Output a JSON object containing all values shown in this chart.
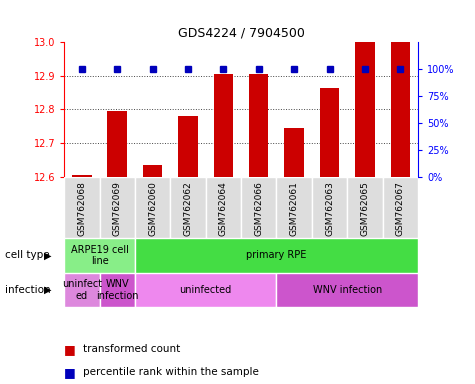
{
  "title": "GDS4224 / 7904500",
  "samples": [
    "GSM762068",
    "GSM762069",
    "GSM762060",
    "GSM762062",
    "GSM762064",
    "GSM762066",
    "GSM762061",
    "GSM762063",
    "GSM762065",
    "GSM762067"
  ],
  "transformed_counts": [
    12.605,
    12.795,
    12.635,
    12.78,
    12.905,
    12.905,
    12.745,
    12.865,
    13.0,
    13.0
  ],
  "percentile_ranks": [
    100,
    100,
    100,
    100,
    100,
    100,
    100,
    100,
    100,
    100
  ],
  "ylim": [
    12.6,
    13.0
  ],
  "yticks": [
    12.6,
    12.7,
    12.8,
    12.9,
    13.0
  ],
  "y2ticks": [
    0,
    25,
    50,
    75,
    100
  ],
  "bar_color": "#cc0000",
  "dot_color": "#0000bb",
  "cell_type_groups": [
    {
      "label": "ARPE19 cell\nline",
      "start": 0,
      "end": 2,
      "color": "#88ee88"
    },
    {
      "label": "primary RPE",
      "start": 2,
      "end": 10,
      "color": "#44dd44"
    }
  ],
  "infection_groups": [
    {
      "label": "uninfect\ned",
      "start": 0,
      "end": 1,
      "color": "#dd88dd"
    },
    {
      "label": "WNV\ninfection",
      "start": 1,
      "end": 2,
      "color": "#cc55cc"
    },
    {
      "label": "uninfected",
      "start": 2,
      "end": 6,
      "color": "#ee88ee"
    },
    {
      "label": "WNV infection",
      "start": 6,
      "end": 10,
      "color": "#cc55cc"
    }
  ],
  "cell_type_label": "cell type",
  "infection_label": "infection",
  "legend_red_label": "transformed count",
  "legend_blue_label": "percentile rank within the sample"
}
